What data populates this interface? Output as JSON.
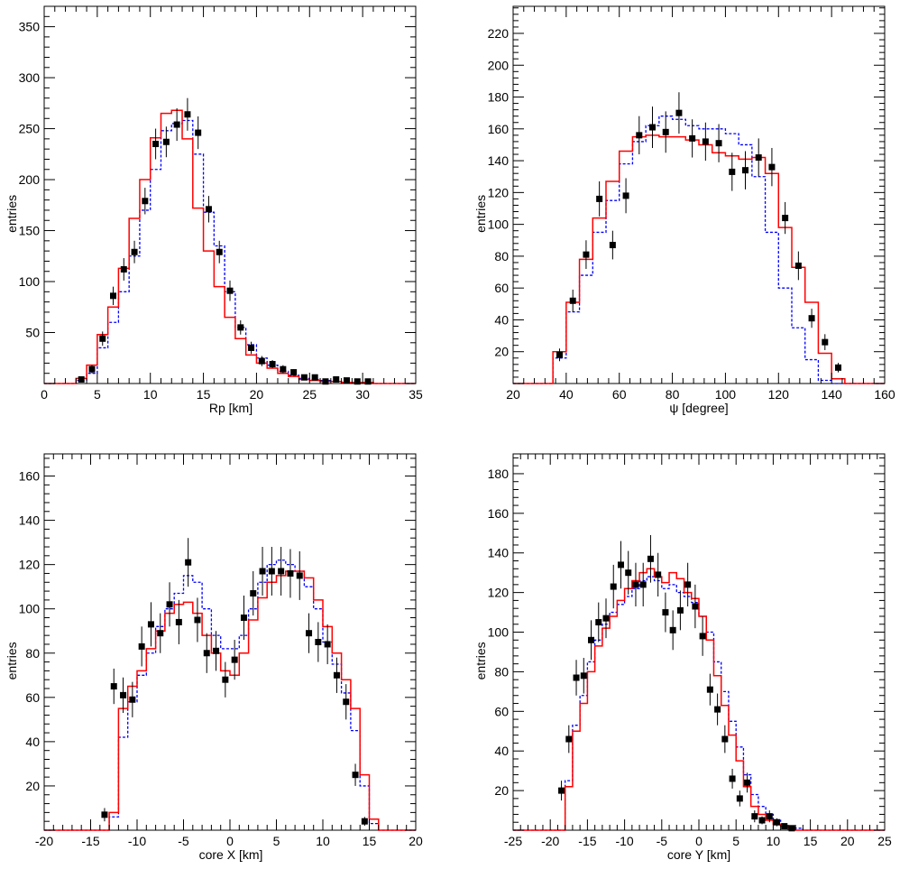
{
  "colors": {
    "data": "#000000",
    "red_mc": "#ff0000",
    "blue_mc": "#0000ff",
    "frame": "#000000"
  },
  "chart_data": [
    {
      "type": "histogram",
      "xlabel": "Rp [km]",
      "ylabel": "entries",
      "xlim": [
        0,
        35
      ],
      "ylim": [
        0,
        370
      ],
      "xticks": [
        0,
        5,
        10,
        15,
        20,
        25,
        30,
        35
      ],
      "xtick_labels": [
        "0",
        "5",
        "10",
        "15",
        "20",
        "25",
        "30",
        "35"
      ],
      "yticks": [
        50,
        100,
        150,
        200,
        250,
        300,
        350
      ],
      "ytick_labels": [
        "50",
        "100",
        "150",
        "200",
        "250",
        "300",
        "350"
      ],
      "bin_edges": [
        0,
        1,
        2,
        3,
        4,
        5,
        6,
        7,
        8,
        9,
        10,
        11,
        12,
        13,
        14,
        15,
        16,
        17,
        18,
        19,
        20,
        21,
        22,
        23,
        24,
        25,
        26,
        27,
        28,
        29,
        30,
        31,
        32,
        33,
        34,
        35
      ],
      "data": {
        "x": [
          3.5,
          4.5,
          5.5,
          6.5,
          7.5,
          8.5,
          9.5,
          10.5,
          11.5,
          12.5,
          13.5,
          14.5,
          15.5,
          16.5,
          17.5,
          18.5,
          19.5,
          20.5,
          21.5,
          22.5,
          23.5,
          24.5,
          25.5,
          26.5,
          27.5,
          28.5,
          29.5,
          30.5
        ],
        "y": [
          4,
          14,
          44,
          86,
          112,
          129,
          179,
          235,
          237,
          254,
          264,
          246,
          171,
          129,
          91,
          55,
          35,
          22,
          19,
          14,
          11,
          6,
          6,
          2,
          4,
          3,
          2,
          2
        ],
        "err": [
          2,
          4,
          7,
          9,
          11,
          11,
          13,
          15,
          15,
          16,
          16,
          16,
          13,
          11,
          10,
          7,
          6,
          5,
          4,
          4,
          3,
          2,
          2,
          1,
          2,
          2,
          1,
          1
        ]
      },
      "red": [
        0,
        0,
        0,
        5,
        18,
        48,
        75,
        113,
        162,
        200,
        241,
        265,
        268,
        240,
        172,
        130,
        95,
        65,
        44,
        28,
        20,
        15,
        10,
        7,
        4,
        3,
        2,
        2,
        1,
        1,
        1,
        0,
        0,
        0,
        0
      ],
      "blue": [
        0,
        0,
        0,
        3,
        10,
        35,
        60,
        90,
        125,
        170,
        210,
        248,
        255,
        258,
        225,
        168,
        135,
        90,
        55,
        38,
        25,
        18,
        12,
        8,
        5,
        4,
        3,
        2,
        1,
        1,
        1,
        0,
        0,
        0,
        0
      ]
    },
    {
      "type": "histogram",
      "xlabel": "ψ [degree]",
      "ylabel": "entries",
      "xlim": [
        20,
        160
      ],
      "ylim": [
        0,
        237
      ],
      "xticks": [
        20,
        40,
        60,
        80,
        100,
        120,
        140,
        160
      ],
      "xtick_labels": [
        "20",
        "40",
        "60",
        "80",
        "100",
        "120",
        "140",
        "160"
      ],
      "yticks": [
        20,
        40,
        60,
        80,
        100,
        120,
        140,
        160,
        180,
        200,
        220
      ],
      "ytick_labels": [
        "20",
        "40",
        "60",
        "80",
        "100",
        "120",
        "140",
        "160",
        "180",
        "200",
        "220"
      ],
      "bin_edges": [
        20,
        25,
        30,
        35,
        40,
        45,
        50,
        55,
        60,
        65,
        70,
        75,
        80,
        85,
        90,
        95,
        100,
        105,
        110,
        115,
        120,
        125,
        130,
        135,
        140,
        145,
        150,
        155,
        160
      ],
      "data": {
        "x": [
          37.5,
          42.5,
          47.5,
          52.5,
          57.5,
          62.5,
          67.5,
          72.5,
          77.5,
          82.5,
          87.5,
          92.5,
          97.5,
          102.5,
          107.5,
          112.5,
          117.5,
          122.5,
          127.5,
          132.5,
          137.5,
          142.5
        ],
        "y": [
          18,
          52,
          81,
          116,
          87,
          118,
          156,
          161,
          158,
          170,
          154,
          152,
          151,
          133,
          134,
          142,
          136,
          104,
          74,
          41,
          26,
          10
        ],
        "err": [
          4,
          7,
          9,
          11,
          9,
          11,
          12,
          13,
          13,
          13,
          12,
          12,
          12,
          12,
          12,
          12,
          12,
          10,
          9,
          6,
          5,
          3
        ]
      },
      "red": [
        0,
        0,
        0,
        20,
        51,
        78,
        104,
        127,
        146,
        155,
        156,
        155,
        155,
        153,
        150,
        145,
        143,
        141,
        142,
        132,
        98,
        73,
        51,
        19,
        3,
        0,
        0,
        0
      ],
      "blue": [
        0,
        0,
        0,
        16,
        45,
        68,
        95,
        115,
        138,
        152,
        162,
        168,
        166,
        162,
        160,
        160,
        157,
        150,
        130,
        95,
        60,
        35,
        15,
        2,
        0,
        0,
        0,
        0
      ]
    },
    {
      "type": "histogram",
      "xlabel": "core X [km]",
      "ylabel": "entries",
      "xlim": [
        -20,
        20
      ],
      "ylim": [
        0,
        170
      ],
      "xticks": [
        -20,
        -15,
        -10,
        -5,
        0,
        5,
        10,
        15,
        20
      ],
      "xtick_labels": [
        "-20",
        "-15",
        "-10",
        "-5",
        "0",
        "5",
        "10",
        "15",
        "20"
      ],
      "yticks": [
        20,
        40,
        60,
        80,
        100,
        120,
        140,
        160
      ],
      "ytick_labels": [
        "20",
        "40",
        "60",
        "80",
        "100",
        "120",
        "140",
        "160"
      ],
      "bin_edges": [
        -20,
        -19,
        -18,
        -17,
        -16,
        -15,
        -14,
        -13,
        -12,
        -11,
        -10,
        -9,
        -8,
        -7,
        -6,
        -5,
        -4,
        -3,
        -2,
        -1,
        0,
        1,
        2,
        3,
        4,
        5,
        6,
        7,
        8,
        9,
        10,
        11,
        12,
        13,
        14,
        15,
        16,
        17,
        18,
        19,
        20
      ],
      "data": {
        "x": [
          -13.5,
          -12.5,
          -11.5,
          -10.5,
          -9.5,
          -8.5,
          -7.5,
          -6.5,
          -5.5,
          -4.5,
          -3.5,
          -2.5,
          -1.5,
          -0.5,
          0.5,
          1.5,
          2.5,
          3.5,
          4.5,
          5.5,
          6.5,
          7.5,
          8.5,
          9.5,
          10.5,
          11.5,
          12.5,
          13.5,
          14.5
        ],
        "y": [
          7,
          65,
          61,
          59,
          83,
          93,
          89,
          102,
          94,
          121,
          95,
          80,
          81,
          68,
          77,
          96,
          107,
          117,
          117,
          117,
          116,
          115,
          89,
          85,
          84,
          70,
          58,
          25,
          4
        ],
        "err": [
          3,
          8,
          8,
          8,
          9,
          10,
          9,
          10,
          10,
          11,
          10,
          9,
          9,
          8,
          9,
          10,
          10,
          11,
          11,
          11,
          11,
          11,
          9,
          9,
          9,
          8,
          8,
          5,
          2
        ],
        "ytop": [
          0,
          0,
          0,
          0,
          0,
          0,
          0,
          0,
          0,
          132,
          0,
          0,
          0,
          0,
          0,
          0,
          0,
          0,
          0,
          0,
          0,
          0,
          0,
          0,
          0,
          0,
          0,
          0,
          0
        ]
      },
      "red": [
        0,
        0,
        0,
        0,
        0,
        0,
        0,
        8,
        55,
        65,
        72,
        82,
        90,
        98,
        102,
        103,
        98,
        88,
        80,
        72,
        70,
        80,
        95,
        105,
        112,
        115,
        117,
        117,
        114,
        104,
        92,
        80,
        68,
        55,
        25,
        5,
        0,
        0,
        0,
        0
      ],
      "blue": [
        0,
        0,
        0,
        0,
        0,
        0,
        0,
        6,
        42,
        58,
        70,
        80,
        92,
        100,
        107,
        115,
        112,
        100,
        88,
        82,
        82,
        88,
        100,
        112,
        120,
        122,
        120,
        117,
        110,
        100,
        85,
        75,
        62,
        45,
        20,
        3,
        0,
        0,
        0,
        0
      ]
    },
    {
      "type": "histogram",
      "xlabel": "core Y [km]",
      "ylabel": "entries",
      "xlim": [
        -25,
        25
      ],
      "ylim": [
        0,
        190
      ],
      "xticks": [
        -25,
        -20,
        -15,
        -10,
        -5,
        0,
        5,
        10,
        15,
        20,
        25
      ],
      "xtick_labels": [
        "-25",
        "-20",
        "-15",
        "-10",
        "-5",
        "0",
        "5",
        "10",
        "15",
        "20",
        "25"
      ],
      "yticks": [
        20,
        40,
        60,
        80,
        100,
        120,
        140,
        160,
        180
      ],
      "ytick_labels": [
        "20",
        "40",
        "60",
        "80",
        "100",
        "120",
        "140",
        "160",
        "180"
      ],
      "bin_edges": [
        -25,
        -24,
        -23,
        -22,
        -21,
        -20,
        -19,
        -18,
        -17,
        -16,
        -15,
        -14,
        -13,
        -12,
        -11,
        -10,
        -9,
        -8,
        -7,
        -6,
        -5,
        -4,
        -3,
        -2,
        -1,
        0,
        1,
        2,
        3,
        4,
        5,
        6,
        7,
        8,
        9,
        10,
        11,
        12,
        13,
        14,
        15,
        16,
        17,
        18,
        19,
        20,
        21,
        22,
        23,
        24,
        25
      ],
      "data": {
        "x": [
          -18.5,
          -17.5,
          -16.5,
          -15.5,
          -14.5,
          -13.5,
          -12.5,
          -11.5,
          -10.5,
          -9.5,
          -8.5,
          -7.5,
          -6.5,
          -5.5,
          -4.5,
          -3.5,
          -2.5,
          -1.5,
          -0.5,
          0.5,
          1.5,
          2.5,
          3.5,
          4.5,
          5.5,
          6.5,
          7.5,
          8.5,
          9.5,
          10.5,
          11.5,
          12.5
        ],
        "y": [
          20,
          46,
          77,
          78,
          96,
          105,
          107,
          123,
          134,
          130,
          124,
          124,
          137,
          129,
          110,
          101,
          111,
          124,
          113,
          98,
          71,
          61,
          46,
          26,
          16,
          24,
          7,
          5,
          7,
          4,
          2,
          1
        ],
        "err": [
          5,
          7,
          9,
          9,
          10,
          10,
          10,
          11,
          12,
          11,
          11,
          11,
          12,
          11,
          10,
          10,
          10,
          11,
          11,
          10,
          8,
          8,
          7,
          5,
          4,
          5,
          3,
          2,
          3,
          2,
          1,
          1
        ]
      },
      "red": [
        0,
        0,
        0,
        0,
        0,
        0,
        0,
        22,
        50,
        64,
        80,
        93,
        102,
        108,
        116,
        122,
        126,
        130,
        132,
        128,
        125,
        130,
        127,
        120,
        117,
        108,
        96,
        78,
        63,
        48,
        35,
        22,
        12,
        8,
        5,
        3,
        2,
        1,
        0,
        0,
        0,
        0,
        0,
        0,
        0,
        0,
        0,
        0,
        0,
        0
      ],
      "blue": [
        0,
        0,
        0,
        0,
        0,
        0,
        0,
        25,
        53,
        68,
        85,
        96,
        104,
        110,
        114,
        118,
        122,
        126,
        128,
        126,
        122,
        124,
        120,
        118,
        115,
        108,
        100,
        85,
        70,
        55,
        42,
        28,
        18,
        12,
        8,
        5,
        3,
        2,
        1,
        0,
        0,
        0,
        0,
        0,
        0,
        0,
        0,
        0,
        0,
        0
      ]
    }
  ]
}
